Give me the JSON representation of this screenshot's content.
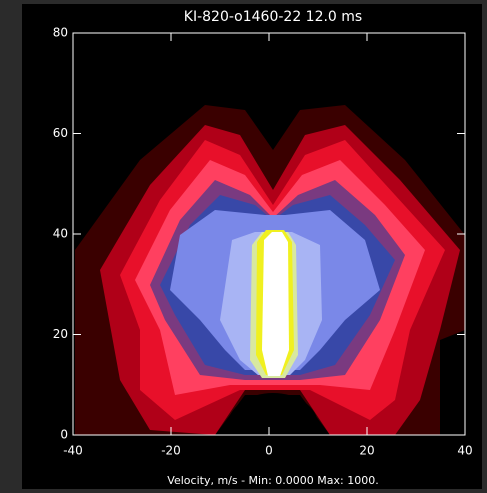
{
  "chart_data": {
    "type": "contour",
    "title": "KI-820-o1460-22  12.0 ms",
    "footer": "Velocity, m/s - Min: 0.0000 Max: 1000.",
    "xlim": [
      -40,
      40
    ],
    "ylim": [
      0,
      80
    ],
    "xticks": [
      -40,
      -20,
      0,
      20,
      40
    ],
    "yticks": [
      0,
      20,
      40,
      60,
      80
    ]
  }
}
